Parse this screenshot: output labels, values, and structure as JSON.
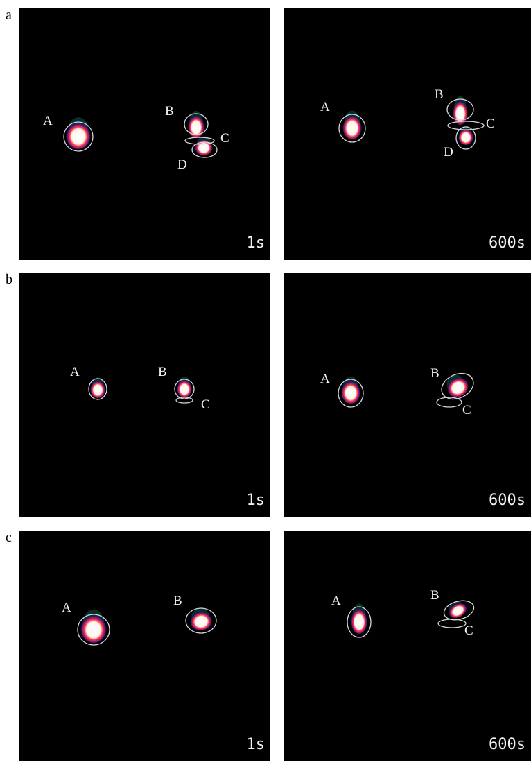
{
  "rows": [
    {
      "label": "a",
      "panels": [
        {
          "time": "1s",
          "spots": [
            "A",
            "B",
            "C",
            "D"
          ]
        },
        {
          "time": "600s",
          "spots": [
            "A",
            "B",
            "C",
            "D"
          ]
        }
      ]
    },
    {
      "label": "b",
      "panels": [
        {
          "time": "1s",
          "spots": [
            "A",
            "B",
            "C"
          ]
        },
        {
          "time": "600s",
          "spots": [
            "A",
            "B",
            "C"
          ]
        }
      ]
    },
    {
      "label": "c",
      "panels": [
        {
          "time": "1s",
          "spots": [
            "A",
            "B"
          ]
        },
        {
          "time": "600s",
          "spots": [
            "A",
            "B",
            "C"
          ]
        }
      ]
    }
  ]
}
